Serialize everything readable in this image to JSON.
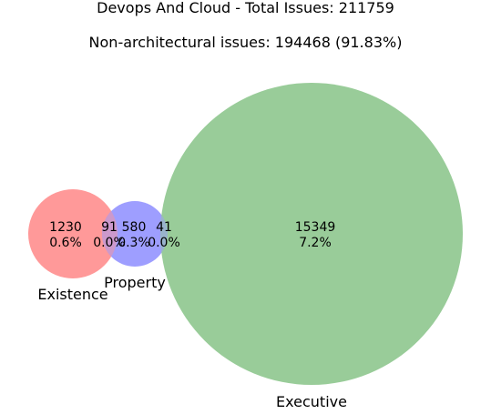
{
  "title": "Devops And Cloud - Total Issues: 211759",
  "subtitle": "Non-architectural issues: 194468 (91.83%)",
  "chart_data": {
    "type": "venn",
    "sets": [
      {
        "name": "Existence",
        "color": "#ff9999"
      },
      {
        "name": "Property",
        "color": "#9999ff"
      },
      {
        "name": "Executive",
        "color": "#99cc99"
      }
    ],
    "regions": [
      {
        "sets": [
          "Existence"
        ],
        "count": "1230",
        "percent": "0.6%"
      },
      {
        "sets": [
          "Existence",
          "Property"
        ],
        "count": "91",
        "percent": "0.0%"
      },
      {
        "sets": [
          "Property"
        ],
        "count": "580",
        "percent": "0.3%"
      },
      {
        "sets": [
          "Property",
          "Executive"
        ],
        "count": "41",
        "percent": "0.0%"
      },
      {
        "sets": [
          "Executive"
        ],
        "count": "15349",
        "percent": "7.2%"
      }
    ]
  }
}
